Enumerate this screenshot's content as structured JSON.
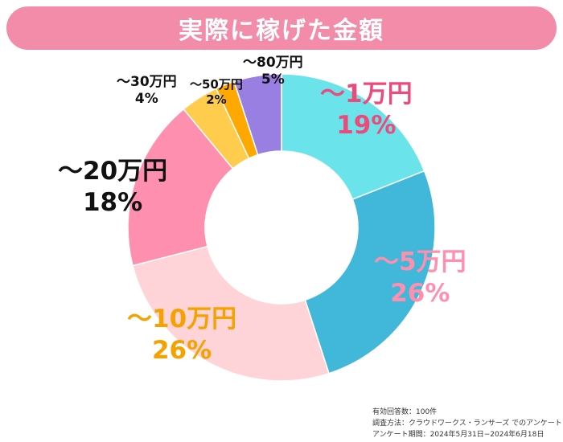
{
  "title": "実際に稼げた金額",
  "footnote": {
    "line1": "有効回答数：100件",
    "line2": "調査方法：クラウドワークス・ランサーズ でのアンケート",
    "line3": "アンケート期間：2024年5月31日−2024年6月18日"
  },
  "chart_data": {
    "type": "pie",
    "donut": true,
    "categories": [
      "～1万円",
      "～5万円",
      "～10万円",
      "～20万円",
      "～30万円",
      "～50万円",
      "～80万円"
    ],
    "values": [
      19,
      26,
      26,
      18,
      4,
      2,
      5
    ],
    "labels": [
      "19%",
      "26%",
      "26%",
      "18%",
      "4%",
      "2%",
      "5%"
    ],
    "colors": [
      "#6be3ea",
      "#41b8d9",
      "#ffd4d8",
      "#ff8fae",
      "#ffcc4d",
      "#ffa800",
      "#9a7fe3"
    ],
    "label_colors": [
      "#ec4a7a",
      "#ff8fae",
      "#f5a100",
      "#111111",
      "#111111",
      "#111111",
      "#111111"
    ],
    "start": "top",
    "direction": "clockwise"
  }
}
